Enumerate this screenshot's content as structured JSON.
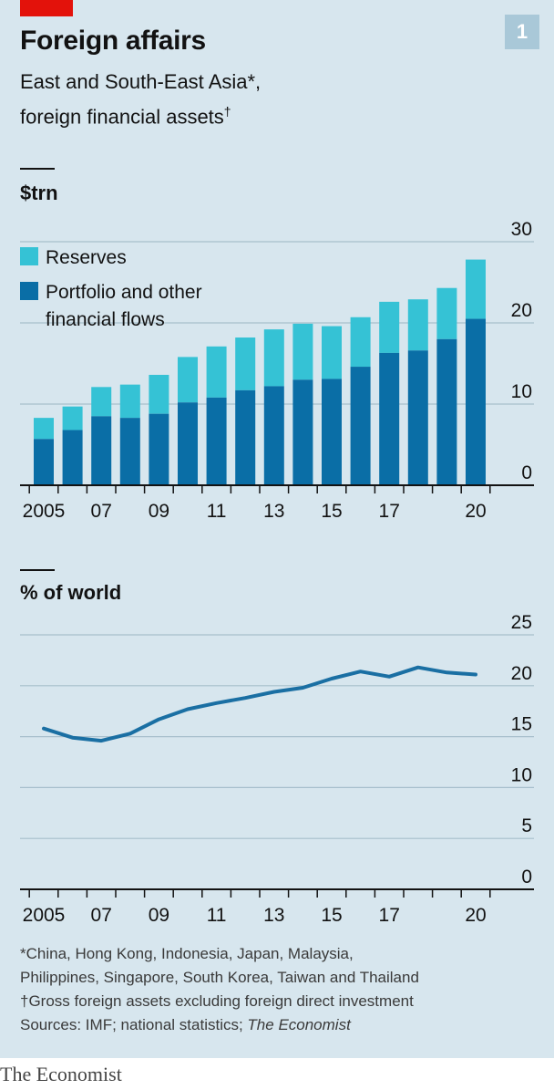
{
  "header": {
    "title": "Foreign affairs",
    "subtitle_line1": "East and South-East Asia*,",
    "subtitle_line2": "foreign financial assets",
    "subtitle_mark": "†",
    "badge": "1"
  },
  "colors": {
    "reserves": "#35c2d5",
    "portfolio": "#0a6ea6",
    "line": "#1a6fa3",
    "accent": "#e3120b",
    "background": "#d7e6ee"
  },
  "chart_data": [
    {
      "type": "bar",
      "stacked": true,
      "ylabel": "$trn",
      "ylim": [
        0,
        30
      ],
      "yticks": [
        "0",
        "10",
        "20",
        "30"
      ],
      "years": [
        2005,
        2006,
        2007,
        2008,
        2009,
        2010,
        2011,
        2012,
        2013,
        2014,
        2015,
        2016,
        2017,
        2018,
        2019,
        2020
      ],
      "xtick_labels": [
        "2005",
        "",
        "07",
        "",
        "09",
        "",
        "11",
        "",
        "13",
        "",
        "15",
        "",
        "17",
        "",
        "",
        "20"
      ],
      "legend": [
        "Reserves",
        "Portfolio and other",
        "financial flows"
      ],
      "series": [
        {
          "name": "Portfolio and other financial flows",
          "values": [
            5.7,
            6.8,
            8.5,
            8.3,
            8.8,
            10.2,
            10.8,
            11.7,
            12.2,
            13.0,
            13.1,
            14.6,
            16.3,
            16.6,
            18.0,
            20.5
          ]
        },
        {
          "name": "Reserves",
          "values": [
            2.6,
            2.9,
            3.6,
            4.1,
            4.8,
            5.6,
            6.3,
            6.5,
            7.0,
            6.9,
            6.5,
            6.1,
            6.3,
            6.3,
            6.3,
            7.3
          ]
        }
      ]
    },
    {
      "type": "line",
      "ylabel": "% of world",
      "ylim": [
        0,
        25
      ],
      "yticks": [
        "0",
        "5",
        "10",
        "15",
        "20",
        "25"
      ],
      "x": [
        2005,
        2006,
        2007,
        2008,
        2009,
        2010,
        2011,
        2012,
        2013,
        2014,
        2015,
        2016,
        2017,
        2018,
        2019,
        2020
      ],
      "xtick_labels": [
        "2005",
        "",
        "07",
        "",
        "09",
        "",
        "11",
        "",
        "13",
        "",
        "15",
        "",
        "17",
        "",
        "",
        "20"
      ],
      "values": [
        15.8,
        14.9,
        14.6,
        15.3,
        16.7,
        17.7,
        18.3,
        18.8,
        19.4,
        19.8,
        20.7,
        21.4,
        20.9,
        21.8,
        21.3,
        21.1
      ]
    }
  ],
  "footnotes": {
    "note1_line1": "*China, Hong Kong, Indonesia, Japan, Malaysia,",
    "note1_line2": "Philippines, Singapore, South Korea, Taiwan and Thailand",
    "note2": "†Gross foreign assets excluding foreign direct investment",
    "sources_prefix": "Sources: IMF; national statistics; ",
    "sources_italic": "The Economist"
  },
  "brand": "The Economist"
}
